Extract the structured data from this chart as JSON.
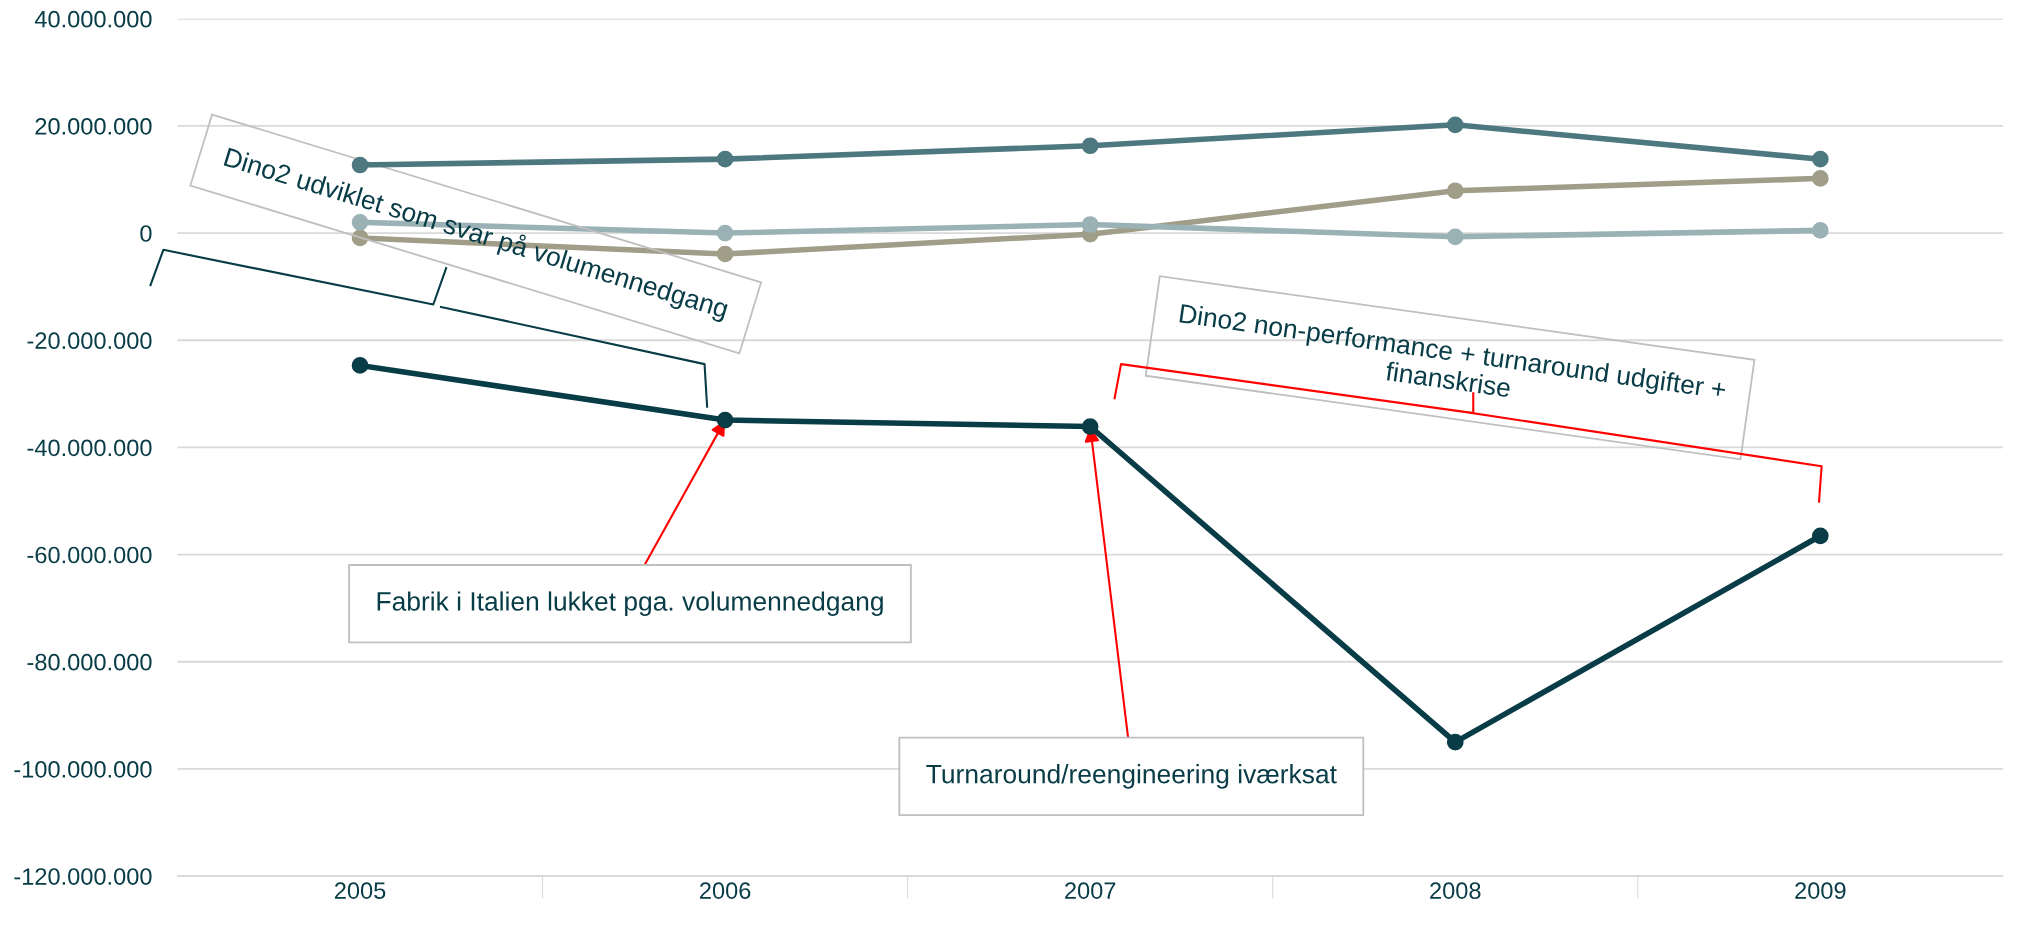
{
  "chart_data": {
    "type": "line",
    "categories": [
      "2005",
      "2006",
      "2007",
      "2008",
      "2009"
    ],
    "series": [
      {
        "color": "#083c46",
        "values": [
          -24700000,
          -34900000,
          -36100000,
          -95000000,
          -56500000
        ]
      },
      {
        "color": "#4e7880",
        "values": [
          12700000,
          13800000,
          16300000,
          20200000,
          13800000
        ]
      },
      {
        "color": "#9ab2b6",
        "values": [
          2000000,
          0,
          1600000,
          -700000,
          500000
        ]
      },
      {
        "color": "#a09e88",
        "values": [
          -900000,
          -3900000,
          -200000,
          7900000,
          10200000
        ]
      }
    ],
    "ylim": [
      -120000000,
      40000000
    ],
    "yticks": [
      {
        "value": -120000000,
        "label": "-120.000.000"
      },
      {
        "value": -100000000,
        "label": "-100.000.000"
      },
      {
        "value": -80000000,
        "label": "-80.000.000"
      },
      {
        "value": -60000000,
        "label": "-60.000.000"
      },
      {
        "value": -40000000,
        "label": "-40.000.000"
      },
      {
        "value": -20000000,
        "label": "-20.000.000"
      },
      {
        "value": 0,
        "label": "0"
      },
      {
        "value": 20000000,
        "label": "20.000.000"
      },
      {
        "value": 40000000,
        "label": "40.000.000"
      }
    ],
    "grid": "y",
    "marker": "circle",
    "line_style": "solid",
    "legend": false,
    "annotations": [
      "Dino2 udviklet som svar på volumennedgang",
      "Dino2 non-performance + turnaround udgifter +\nfinanskrise",
      {
        "text": "Fabrik i Italien lukket pga. volumennedgang",
        "x": "2006",
        "y": -34900000
      },
      {
        "text": "Turnaround/reengineering iværksat",
        "x": "2007",
        "y": -36100000
      }
    ]
  }
}
